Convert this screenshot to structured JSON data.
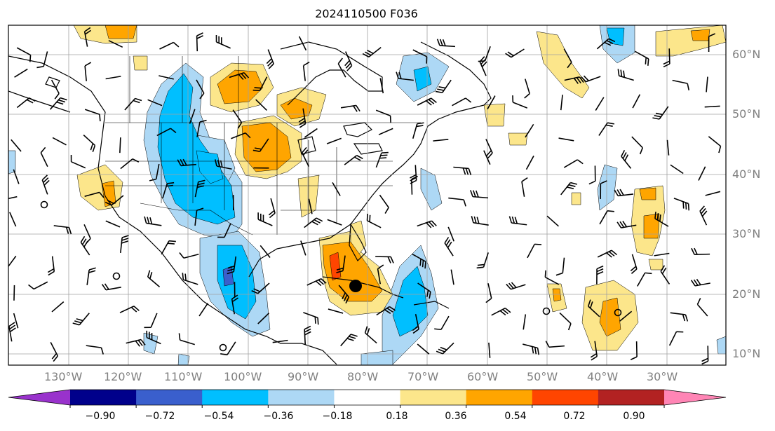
{
  "title": "2024110500 F036",
  "lat_labels": [
    "60°N",
    "50°N",
    "40°N",
    "30°N",
    "20°N",
    "10°N"
  ],
  "lon_labels": [
    "130°W",
    "120°W",
    "110°W",
    "100°W",
    "90°W",
    "80°W",
    "70°W",
    "60°W",
    "50°W",
    "40°W",
    "30°W"
  ],
  "colorbar": {
    "colors": [
      "#9932cc",
      "#00008b",
      "#3a5fcd",
      "#00bfff",
      "#add8f5",
      "#ffffff",
      "#fce68b",
      "#ffa500",
      "#ff4500",
      "#b22222",
      "#ff85b5"
    ],
    "labels": [
      "−0.90",
      "−0.72",
      "−0.54",
      "−0.36",
      "−0.18",
      "0.18",
      "0.36",
      "0.54",
      "0.72",
      "0.90"
    ]
  },
  "field_colors": {
    "neg_light": "#add8f5",
    "neg_mid": "#00bfff",
    "neg_strong": "#3a5fcd",
    "pos_light": "#fce68b",
    "pos_mid": "#ffa500",
    "pos_strong": "#ff4500"
  }
}
